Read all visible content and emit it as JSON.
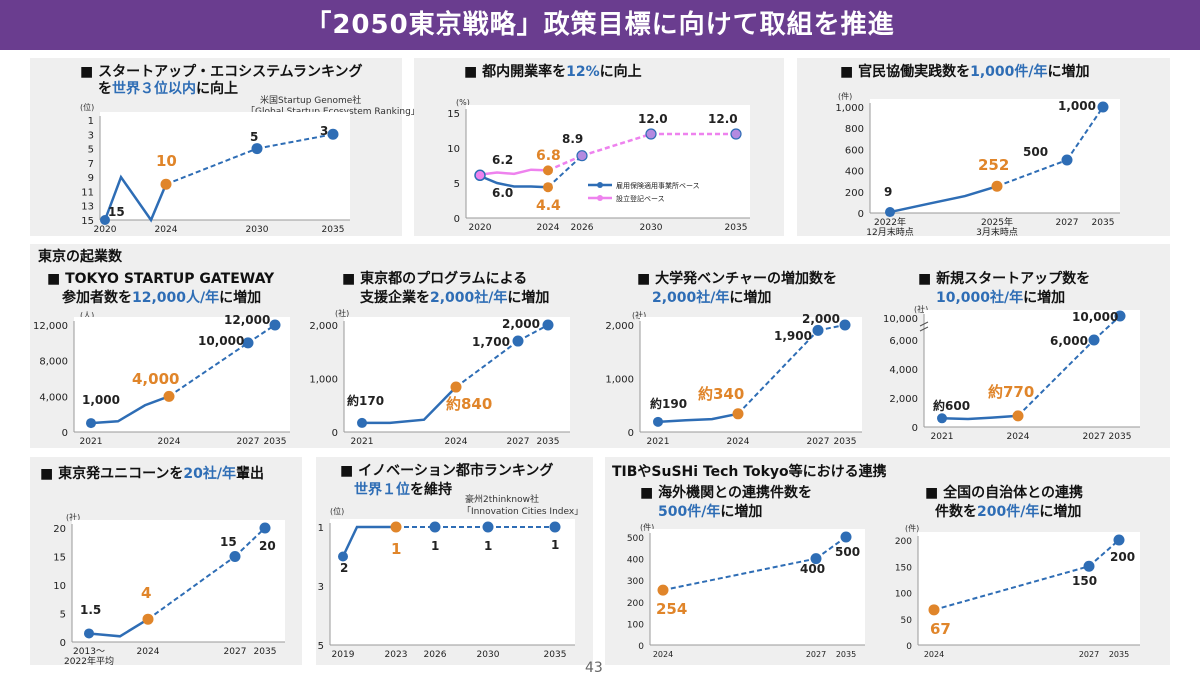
{
  "slide": {
    "title": "「2050東京戦略」政策目標に向けて取組を推進",
    "page_number": "43",
    "group_heading": "東京の起業数",
    "collab_heading": "TIBやSuSHi Tech Tokyo等における連携"
  },
  "colors": {
    "banner": "#6a3d8f",
    "blue": "#2e6db5",
    "orange": "#e0852a",
    "pink": "#ee82ee",
    "panel": "#efefef"
  },
  "chart_data": [
    {
      "id": "c1",
      "type": "line",
      "title": "■ スタートアップ・エコシステムランキング",
      "title2_parts": [
        "を",
        "世界３位以内",
        "に向上"
      ],
      "source": [
        "米国Startup Genome社",
        "「Global Startup Ecosystem Ranking」"
      ],
      "unit": "(位)",
      "ylim": [
        15,
        1
      ],
      "reversed": true,
      "yticks": [
        "1",
        "3",
        "5",
        "7",
        "9",
        "11",
        "13",
        "15"
      ],
      "xticks": [
        "2020",
        "2024",
        "2030",
        "2035"
      ],
      "actual_x": [
        2020,
        2021,
        2023,
        2024
      ],
      "actual_y": [
        15,
        9,
        15,
        10
      ],
      "current": {
        "x": 2024,
        "y": 10,
        "label": "10"
      },
      "targets": [
        {
          "x": 2030,
          "y": 5,
          "label": "5"
        },
        {
          "x": 2035,
          "y": 3,
          "label": "3"
        }
      ],
      "labels": [
        {
          "x": 2020,
          "y": 15,
          "text": "15"
        }
      ]
    },
    {
      "id": "c2",
      "type": "line",
      "title_parts": [
        "■ 都内開業率を",
        "12%",
        "に向上"
      ],
      "unit": "(%)",
      "ylim": [
        0,
        15
      ],
      "yticks": [
        "0",
        "5",
        "10",
        "15"
      ],
      "xticks": [
        "2020",
        "2024",
        "2026",
        "2030",
        "2035"
      ],
      "legend": [
        "雇用保険適用事業所ベース",
        "設立登記ベース"
      ],
      "series_a": {
        "x": [
          2020,
          2021,
          2022,
          2023,
          2024
        ],
        "y": [
          6.0,
          5.0,
          4.5,
          4.5,
          4.4
        ],
        "labels": [
          "6.0",
          "4.4"
        ]
      },
      "series_b": {
        "x": [
          2020,
          2021,
          2022,
          2023,
          2024
        ],
        "y": [
          6.2,
          6.5,
          6.3,
          6.9,
          6.8
        ],
        "labels": [
          "6.2",
          "6.8"
        ]
      },
      "targets": [
        {
          "x": 2026,
          "y": 8.9,
          "label": "8.9"
        },
        {
          "x": 2030,
          "y": 12.0,
          "label": "12.0"
        },
        {
          "x": 2035,
          "y": 12.0,
          "label": "12.0"
        }
      ]
    },
    {
      "id": "c3",
      "type": "line",
      "title_parts": [
        "■ 官民協働実践数を",
        "1,000件/年",
        "に増加"
      ],
      "unit": "(件)",
      "ylim": [
        0,
        1000
      ],
      "yticks": [
        "0",
        "200",
        "400",
        "600",
        "800",
        "1,000"
      ],
      "xticks": [
        {
          "x": 2022,
          "text": "2022年",
          "sub": "12月末時点"
        },
        {
          "x": 2025,
          "text": "2025年",
          "sub": "3月末時点"
        },
        {
          "x": 2027,
          "text": "2027"
        },
        {
          "x": 2035,
          "text": "2035"
        }
      ],
      "actual_x": [
        2022,
        2023,
        2024,
        2025
      ],
      "actual_y": [
        9,
        90,
        160,
        252
      ],
      "current": {
        "x": 2025,
        "y": 252,
        "label": "252"
      },
      "targets": [
        {
          "x": 2027,
          "y": 500,
          "label": "500"
        },
        {
          "x": 2035,
          "y": 1000,
          "label": "1,000"
        }
      ],
      "labels": [
        {
          "x": 2022,
          "y": 9,
          "text": "9"
        }
      ]
    },
    {
      "id": "c4",
      "type": "line",
      "title": "■ TOKYO STARTUP GATEWAY",
      "title2_parts": [
        "参加者数を",
        "12,000人/年",
        "に増加"
      ],
      "unit": "(人)",
      "ylim": [
        0,
        12000
      ],
      "yticks": [
        "0",
        "4,000",
        "8,000",
        "12,000"
      ],
      "xticks": [
        "2021",
        "2024",
        "2027",
        "2035"
      ],
      "actual_x": [
        2021,
        2022,
        2023,
        2024
      ],
      "actual_y": [
        1000,
        1200,
        3000,
        4000
      ],
      "current": {
        "x": 2024,
        "y": 4000,
        "label": "4,000"
      },
      "targets": [
        {
          "x": 2027,
          "y": 10000,
          "label": "10,000"
        },
        {
          "x": 2035,
          "y": 12000,
          "label": "12,000"
        }
      ],
      "labels": [
        {
          "x": 2021,
          "y": 1000,
          "text": "1,000"
        }
      ]
    },
    {
      "id": "c5",
      "type": "line",
      "title": "■ 東京都のプログラムによる",
      "title2_parts": [
        "支援企業を",
        "2,000社/年",
        "に増加"
      ],
      "unit": "(社)",
      "ylim": [
        0,
        2000
      ],
      "yticks": [
        "0",
        "1,000",
        "2,000"
      ],
      "xticks": [
        "2021",
        "2024",
        "2027",
        "2035"
      ],
      "actual_x": [
        2021,
        2022,
        2023,
        2024
      ],
      "actual_y": [
        170,
        170,
        230,
        840
      ],
      "current": {
        "x": 2024,
        "y": 840,
        "label": "約840"
      },
      "targets": [
        {
          "x": 2027,
          "y": 1700,
          "label": "1,700"
        },
        {
          "x": 2035,
          "y": 2000,
          "label": "2,000"
        }
      ],
      "labels": [
        {
          "x": 2021,
          "y": 170,
          "text": "約170"
        }
      ]
    },
    {
      "id": "c6",
      "type": "line",
      "title": "■ 大学発ベンチャーの増加数を",
      "title2_parts": [
        "",
        "2,000社/年",
        "に増加"
      ],
      "unit": "(社)",
      "ylim": [
        0,
        2000
      ],
      "yticks": [
        "0",
        "1,000",
        "2,000"
      ],
      "xticks": [
        "2021",
        "2024",
        "2027",
        "2035"
      ],
      "actual_x": [
        2021,
        2022,
        2023,
        2024
      ],
      "actual_y": [
        190,
        220,
        240,
        340
      ],
      "current": {
        "x": 2024,
        "y": 340,
        "label": "約340"
      },
      "targets": [
        {
          "x": 2027,
          "y": 1900,
          "label": "1,900"
        },
        {
          "x": 2035,
          "y": 2000,
          "label": "2,000"
        }
      ],
      "labels": [
        {
          "x": 2021,
          "y": 190,
          "text": "約190"
        }
      ]
    },
    {
      "id": "c7",
      "type": "line",
      "title": "■ 新規スタートアップ数を",
      "title2_parts": [
        "",
        "10,000社/年",
        "に増加"
      ],
      "unit": "(社)",
      "ylim": [
        0,
        6000
      ],
      "axis_break": true,
      "yticks": [
        "0",
        "2,000",
        "4,000",
        "6,000",
        "10,000"
      ],
      "xticks": [
        "2021",
        "2024",
        "2027",
        "2035"
      ],
      "actual_x": [
        2021,
        2022,
        2023,
        2024
      ],
      "actual_y": [
        600,
        550,
        650,
        770
      ],
      "current": {
        "x": 2024,
        "y": 770,
        "label": "約770"
      },
      "targets": [
        {
          "x": 2027,
          "y": 6000,
          "label": "6,000"
        },
        {
          "x": 2035,
          "y": 10000,
          "label": "10,000"
        }
      ],
      "labels": [
        {
          "x": 2021,
          "y": 600,
          "text": "約600"
        }
      ]
    },
    {
      "id": "c8",
      "type": "line",
      "title_parts": [
        "■ 東京発ユニコーンを",
        "20社/年",
        "輩出"
      ],
      "unit": "(社)",
      "ylim": [
        0,
        20
      ],
      "yticks": [
        "0",
        "5",
        "10",
        "15",
        "20"
      ],
      "xticks": [
        {
          "x": 2022,
          "text": "2013～",
          "sub": "2022年平均"
        },
        {
          "x": 2024,
          "text": "2024"
        },
        {
          "x": 2027,
          "text": "2027"
        },
        {
          "x": 2035,
          "text": "2035"
        }
      ],
      "actual_x": [
        2022,
        2023,
        2024
      ],
      "actual_y": [
        1.5,
        1.0,
        4
      ],
      "current": {
        "x": 2024,
        "y": 4,
        "label": "4"
      },
      "targets": [
        {
          "x": 2027,
          "y": 15,
          "label": "15"
        },
        {
          "x": 2035,
          "y": 20,
          "label": "20"
        }
      ],
      "labels": [
        {
          "x": 2022,
          "y": 1.5,
          "text": "1.5"
        }
      ]
    },
    {
      "id": "c9",
      "type": "line",
      "title": "■ イノベーション都市ランキング",
      "title2_parts": [
        "",
        "世界１位",
        "を維持"
      ],
      "source": [
        "豪州2thinknow社",
        "「Innovation Cities Index」"
      ],
      "unit": "(位)",
      "ylim": [
        5,
        1
      ],
      "reversed": true,
      "yticks": [
        "1",
        "3",
        "5"
      ],
      "xticks": [
        "2019",
        "2023",
        "2026",
        "2030",
        "2035"
      ],
      "actual_x": [
        2019,
        2020,
        2023
      ],
      "actual_y": [
        2,
        1,
        1
      ],
      "current": {
        "x": 2023,
        "y": 1,
        "label": "1"
      },
      "targets": [
        {
          "x": 2026,
          "y": 1,
          "label": "1"
        },
        {
          "x": 2030,
          "y": 1,
          "label": "1"
        },
        {
          "x": 2035,
          "y": 1,
          "label": "1"
        }
      ],
      "labels": [
        {
          "x": 2019,
          "y": 2,
          "text": "2"
        }
      ]
    },
    {
      "id": "c10",
      "type": "line",
      "title": "■ 海外機関との連携件数を",
      "title2_parts": [
        "",
        "500件/年",
        "に増加"
      ],
      "unit": "(件)",
      "ylim": [
        0,
        500
      ],
      "yticks": [
        "0",
        "100",
        "200",
        "300",
        "400",
        "500"
      ],
      "xticks": [
        "2024",
        "2027",
        "2035"
      ],
      "actual_x": [],
      "actual_y": [],
      "current": {
        "x": 2024,
        "y": 254,
        "label": "254"
      },
      "targets": [
        {
          "x": 2027,
          "y": 400,
          "label": "400"
        },
        {
          "x": 2035,
          "y": 500,
          "label": "500"
        }
      ],
      "labels": []
    },
    {
      "id": "c11",
      "type": "line",
      "title": "■ 全国の自治体との連携",
      "title2_parts": [
        "件数を",
        "200件/年",
        "に増加"
      ],
      "unit": "(件)",
      "ylim": [
        0,
        200
      ],
      "yticks": [
        "0",
        "50",
        "100",
        "150",
        "200"
      ],
      "xticks": [
        "2024",
        "2027",
        "2035"
      ],
      "actual_x": [],
      "actual_y": [],
      "current": {
        "x": 2024,
        "y": 67,
        "label": "67"
      },
      "targets": [
        {
          "x": 2027,
          "y": 150,
          "label": "150"
        },
        {
          "x": 2035,
          "y": 200,
          "label": "200"
        }
      ],
      "labels": []
    }
  ]
}
